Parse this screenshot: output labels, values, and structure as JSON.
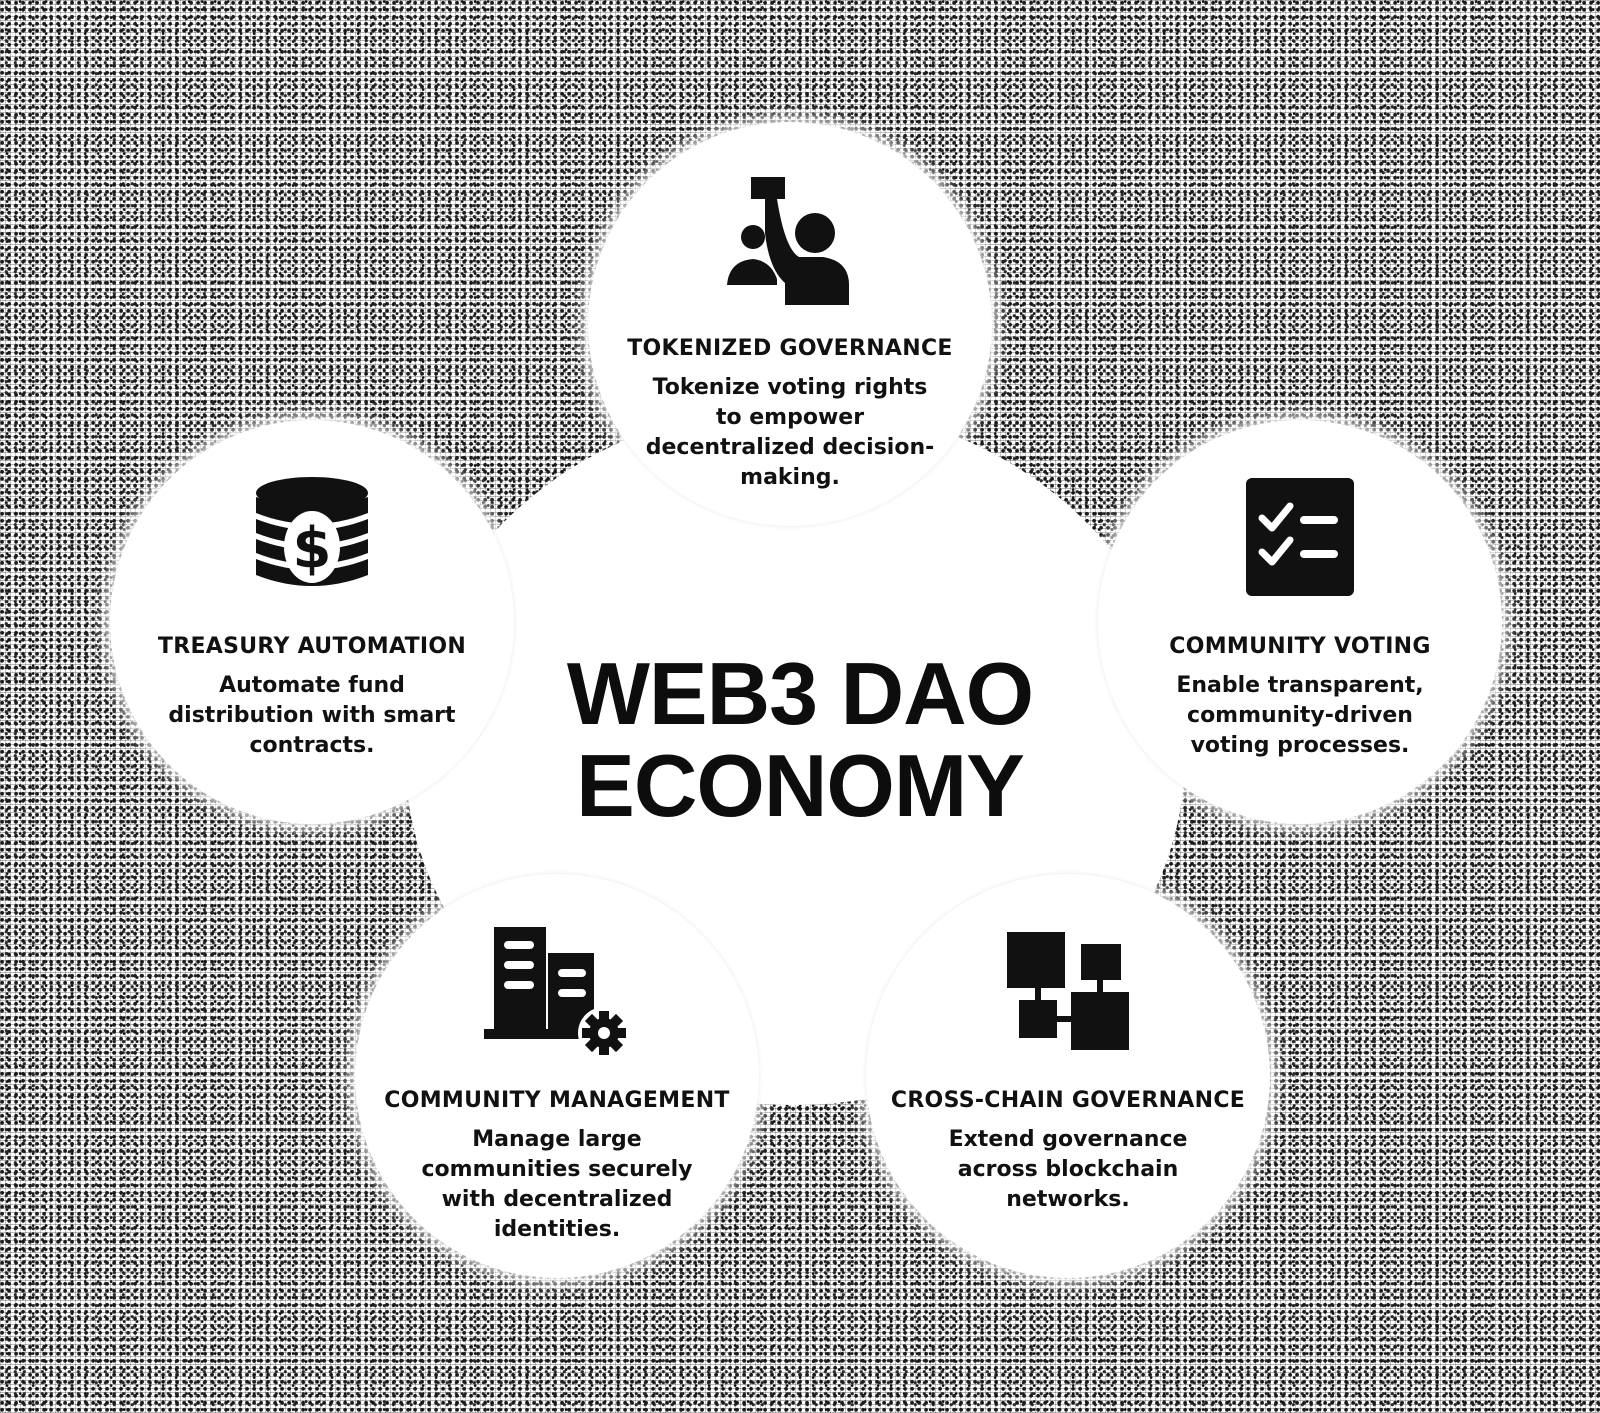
{
  "title": {
    "line1": "WEB3 DAO",
    "line2": "ECONOMY"
  },
  "nodes": [
    {
      "label": "TOKENIZED GOVERNANCE",
      "description": "Tokenize voting rights to empower decentralized decision-making.",
      "icon": "voting-raised-hand-icon"
    },
    {
      "label": "COMMUNITY VOTING",
      "description": "Enable transparent, community-driven voting processes.",
      "icon": "checklist-icon"
    },
    {
      "label": "CROSS-CHAIN GOVERNANCE",
      "description": "Extend governance across blockchain networks.",
      "icon": "network-nodes-icon"
    },
    {
      "label": "COMMUNITY MANAGEMENT",
      "description": "Manage large communities securely with decentralized identities.",
      "icon": "buildings-gear-icon"
    },
    {
      "label": "TREASURY AUTOMATION",
      "description": "Automate fund distribution with smart contracts.",
      "icon": "coin-stack-dollar-icon"
    }
  ],
  "colors": {
    "foreground": "#111111",
    "node_fill": "#ffffff"
  }
}
